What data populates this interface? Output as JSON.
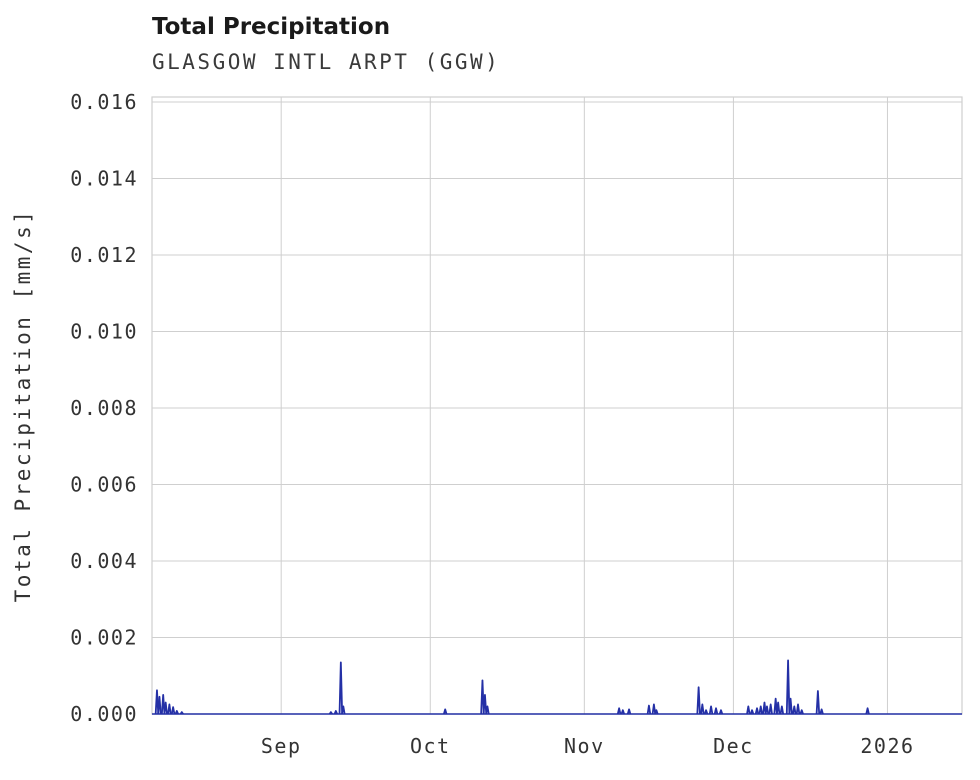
{
  "chart_data": {
    "type": "line",
    "title": "Total Precipitation",
    "subtitle": "GLASGOW INTL ARPT (GGW)",
    "xlabel": "",
    "ylabel": "Total Precipitation [mm/s]",
    "series_color": "#2430a6",
    "grid_color": "#cfcfcf",
    "tick_color": "#333333",
    "background_color": "#ffffff",
    "grid": true,
    "legend": false,
    "xlim": [
      "2025-08-06T00:00:00",
      "2026-01-16T00:00:00"
    ],
    "ylim": [
      0,
      0.01613
    ],
    "y_ticks": [
      0.0,
      0.002,
      0.004,
      0.006,
      0.008,
      0.01,
      0.012,
      0.014,
      0.016
    ],
    "y_tick_labels": [
      "0.000",
      "0.002",
      "0.004",
      "0.006",
      "0.008",
      "0.010",
      "0.012",
      "0.014",
      "0.016"
    ],
    "x_ticks": [
      "2025-09-01T00:00:00",
      "2025-10-01T00:00:00",
      "2025-11-01T00:00:00",
      "2025-12-01T00:00:00",
      "2026-01-01T00:00:00"
    ],
    "x_tick_labels": [
      "Sep",
      "Oct",
      "Nov",
      "Dec",
      "2026"
    ],
    "baseline_value": 0,
    "points": [
      [
        "2025-08-07T00:00:00",
        0.00062
      ],
      [
        "2025-08-07T12:00:00",
        0.00045
      ],
      [
        "2025-08-08T06:00:00",
        0.0005
      ],
      [
        "2025-08-08T18:00:00",
        0.0003
      ],
      [
        "2025-08-09T12:00:00",
        0.00025
      ],
      [
        "2025-08-10T06:00:00",
        0.00018
      ],
      [
        "2025-08-11T00:00:00",
        8e-05
      ],
      [
        "2025-08-12T00:00:00",
        5e-05
      ],
      [
        "2025-09-11T00:00:00",
        5e-05
      ],
      [
        "2025-09-12T00:00:00",
        8e-05
      ],
      [
        "2025-09-13T00:00:00",
        0.00135
      ],
      [
        "2025-09-13T12:00:00",
        0.0002
      ],
      [
        "2025-10-04T00:00:00",
        0.00012
      ],
      [
        "2025-10-11T12:00:00",
        0.00088
      ],
      [
        "2025-10-12T00:00:00",
        0.0005
      ],
      [
        "2025-10-12T12:00:00",
        0.0002
      ],
      [
        "2025-11-08T00:00:00",
        0.00015
      ],
      [
        "2025-11-08T18:00:00",
        0.0001
      ],
      [
        "2025-11-10T00:00:00",
        0.00012
      ],
      [
        "2025-11-14T00:00:00",
        0.00022
      ],
      [
        "2025-11-15T00:00:00",
        0.00025
      ],
      [
        "2025-11-15T12:00:00",
        0.0001
      ],
      [
        "2025-11-24T00:00:00",
        0.0007
      ],
      [
        "2025-11-24T18:00:00",
        0.00025
      ],
      [
        "2025-11-25T12:00:00",
        0.0001
      ],
      [
        "2025-11-26T12:00:00",
        0.0002
      ],
      [
        "2025-11-27T12:00:00",
        0.00015
      ],
      [
        "2025-11-28T12:00:00",
        0.0001
      ],
      [
        "2025-12-04T00:00:00",
        0.0002
      ],
      [
        "2025-12-04T18:00:00",
        0.0001
      ],
      [
        "2025-12-05T18:00:00",
        0.00015
      ],
      [
        "2025-12-06T12:00:00",
        0.0002
      ],
      [
        "2025-12-07T06:00:00",
        0.0003
      ],
      [
        "2025-12-07T18:00:00",
        0.0002
      ],
      [
        "2025-12-08T12:00:00",
        0.00025
      ],
      [
        "2025-12-09T12:00:00",
        0.0004
      ],
      [
        "2025-12-10T00:00:00",
        0.0003
      ],
      [
        "2025-12-10T18:00:00",
        0.0002
      ],
      [
        "2025-12-12T00:00:00",
        0.0014
      ],
      [
        "2025-12-12T12:00:00",
        0.0004
      ],
      [
        "2025-12-13T06:00:00",
        0.0002
      ],
      [
        "2025-12-14T00:00:00",
        0.00025
      ],
      [
        "2025-12-14T18:00:00",
        0.0001
      ],
      [
        "2025-12-18T00:00:00",
        0.0006
      ],
      [
        "2025-12-18T18:00:00",
        0.00012
      ],
      [
        "2025-12-28T00:00:00",
        0.00015
      ]
    ]
  }
}
